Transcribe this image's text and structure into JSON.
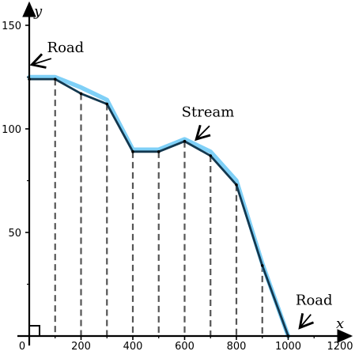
{
  "chart_data": {
    "type": "line",
    "xlabel": "x",
    "ylabel": "y",
    "xlim": [
      0,
      1200
    ],
    "ylim": [
      0,
      160
    ],
    "x_ticks": [
      0,
      200,
      400,
      600,
      800,
      1000,
      1200
    ],
    "y_ticks": [
      50,
      100,
      150
    ],
    "x_tick_labels": [
      "0",
      "200",
      "400",
      "600",
      "800",
      "1000",
      "1200"
    ],
    "y_tick_labels": [
      "50",
      "100",
      "150"
    ],
    "grid": false,
    "right_angle_marker_at_origin": true,
    "series": [
      {
        "style": "light blue curve",
        "color": "#7fd0f7",
        "x": [
          0,
          100,
          200,
          300,
          400,
          500,
          600,
          700,
          800,
          900,
          1000
        ],
        "y": [
          125,
          125,
          120,
          114,
          90,
          90,
          95,
          89,
          75,
          35,
          0
        ]
      },
      {
        "style": "dark polygonal outline",
        "color": "#13384f",
        "x": [
          0,
          100,
          200,
          300,
          400,
          500,
          600,
          700,
          800,
          900,
          1000
        ],
        "y": [
          124,
          124,
          117,
          112,
          89,
          89,
          94,
          87,
          73,
          34,
          0
        ]
      }
    ],
    "vertical_dashed_x": [
      100,
      200,
      300,
      400,
      500,
      600,
      700,
      800,
      900
    ],
    "annotations": [
      {
        "text": "Road",
        "text_xy": [
          140,
          137
        ],
        "arrow_tip": [
          10,
          131
        ]
      },
      {
        "text": "Stream",
        "text_xy": [
          690,
          106
        ],
        "arrow_tip": [
          645,
          95
        ]
      },
      {
        "text": "Road",
        "text_xy": [
          1100,
          15
        ],
        "arrow_tip": [
          1045,
          4
        ]
      }
    ]
  }
}
